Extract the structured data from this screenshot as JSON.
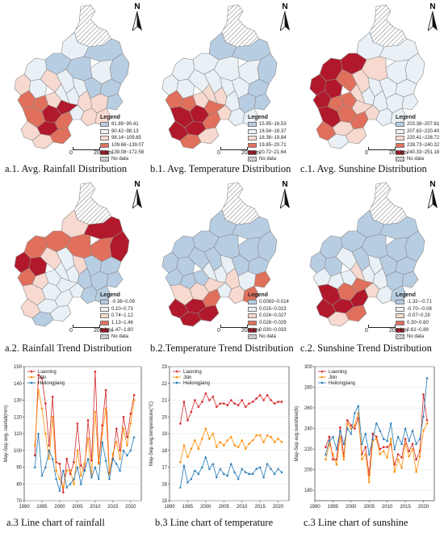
{
  "colors": {
    "c1": "#b7cde2",
    "c2": "#eaf1f6",
    "c3": "#f7d9cf",
    "c4": "#e0705c",
    "c5": "#b2182b",
    "liaoning": "#d62728",
    "jilin": "#ff8c00",
    "heilongjiang": "#1f77b4"
  },
  "compass_letter": "N",
  "no_data_label": "No data",
  "legend_title": "Legend",
  "scale": {
    "zero": "0",
    "km": "200 km"
  },
  "maps": [
    {
      "caption": "a.1. Avg. Rainfall Distribution",
      "legend": [
        "81.89~90.41",
        "90.42~98.13",
        "98.14~109.65",
        "109.66~139.07",
        "139.08~172.58"
      ]
    },
    {
      "caption": "b.1. Avg. Temperature Distribution",
      "legend": [
        "15.95~16.53",
        "16.54~18.37",
        "18.38~19.84",
        "19.85~20.71",
        "20.72~21.64"
      ]
    },
    {
      "caption": "c.1. Avg. Sunshine Distribution",
      "legend": [
        "203.38~207.61",
        "207.62~220.40",
        "220.41~228.72",
        "228.73~240.32",
        "240.33~251.18"
      ]
    },
    {
      "caption": "a.2. Rainfall Trend Distribution",
      "legend": [
        "-0.36~0.09",
        "0.10~0.73",
        "0.74~1.12",
        "1.13~1.46",
        "1.47~1.80"
      ]
    },
    {
      "caption": "b.2.Temperature Trend Distribution",
      "legend": [
        "0.0083~0.014",
        "0.015~0.023",
        "0.024~0.027",
        "0.028~0.029",
        "0.030~0.033"
      ]
    },
    {
      "caption": "c.2. Sunshine Trend Distribution",
      "legend": [
        "-1.32~-0.71",
        "-0.70~-0.08",
        "-0.07~0.29",
        "0.30~0.60",
        "0.61~0.89"
      ]
    }
  ],
  "chart_data": [
    {
      "type": "line",
      "caption": "a.3 Line chart of rainfall",
      "ylabel": "May-Sep avg. rainfall(mm)",
      "xlim": [
        1990,
        2020
      ],
      "ylim": [
        70,
        150
      ],
      "xticks": [
        1990,
        1995,
        2000,
        2005,
        2010,
        2015,
        2020
      ],
      "yticks": [
        70,
        80,
        90,
        100,
        110,
        120,
        130,
        140,
        150
      ],
      "x": [
        1993,
        1994,
        1995,
        1996,
        1997,
        1998,
        1999,
        2000,
        2001,
        2002,
        2003,
        2004,
        2005,
        2006,
        2007,
        2008,
        2009,
        2010,
        2011,
        2012,
        2013,
        2014,
        2015,
        2016,
        2017,
        2018,
        2019,
        2020,
        2021
      ],
      "series": [
        {
          "name": "Liaoning",
          "values": [
            97,
            145,
            143,
            128,
            103,
            132,
            93,
            92,
            75,
            95,
            86,
            93,
            116,
            91,
            88,
            118,
            94,
            147,
            93,
            115,
            136,
            87,
            95,
            113,
            100,
            120,
            108,
            122,
            133
          ]
        },
        {
          "name": "Jilin",
          "values": [
            103,
            136,
            125,
            110,
            95,
            120,
            88,
            83,
            78,
            88,
            88,
            80,
            100,
            85,
            92,
            107,
            85,
            123,
            92,
            110,
            125,
            86,
            98,
            105,
            95,
            113,
            103,
            116,
            130
          ]
        },
        {
          "name": "Heilongjiang",
          "values": [
            90,
            110,
            85,
            90,
            100,
            95,
            83,
            76,
            88,
            78,
            80,
            83,
            90,
            80,
            88,
            95,
            84,
            90,
            83,
            105,
            94,
            83,
            95,
            92,
            88,
            100,
            97,
            100,
            108
          ]
        }
      ]
    },
    {
      "type": "line",
      "caption": "b.3 Line chart of temperature",
      "ylabel": "May-Sep avg.temperature(°C)",
      "xlim": [
        1990,
        2020
      ],
      "ylim": [
        15,
        23
      ],
      "xticks": [
        1990,
        1995,
        2000,
        2005,
        2010,
        2015,
        2020
      ],
      "yticks": [
        15,
        16,
        17,
        18,
        19,
        20,
        21,
        22,
        23
      ],
      "x": [
        1993,
        1994,
        1995,
        1996,
        1997,
        1998,
        1999,
        2000,
        2001,
        2002,
        2003,
        2004,
        2005,
        2006,
        2007,
        2008,
        2009,
        2010,
        2011,
        2012,
        2013,
        2014,
        2015,
        2016,
        2017,
        2018,
        2019,
        2020,
        2021
      ],
      "series": [
        {
          "name": "Liaoning",
          "values": [
            19.6,
            20.9,
            19.8,
            20.3,
            21.0,
            20.6,
            20.9,
            21.4,
            21.0,
            21.2,
            20.6,
            20.8,
            20.8,
            20.7,
            21.0,
            20.8,
            20.7,
            21.0,
            20.6,
            20.8,
            20.9,
            21.1,
            21.3,
            21.0,
            21.3,
            21.0,
            20.8,
            20.9,
            20.9
          ]
        },
        {
          "name": "Jilin",
          "values": [
            17.3,
            18.3,
            17.6,
            18.1,
            18.6,
            18.1,
            18.7,
            19.3,
            18.7,
            19.0,
            18.2,
            18.5,
            18.3,
            18.6,
            18.8,
            18.3,
            18.2,
            18.6,
            18.1,
            18.4,
            18.6,
            18.9,
            18.9,
            18.5,
            18.9,
            18.8,
            18.5,
            18.7,
            18.5
          ]
        },
        {
          "name": "Heilongjiang",
          "values": [
            15.8,
            17.1,
            16.1,
            16.3,
            16.8,
            16.6,
            17.0,
            17.6,
            16.9,
            17.2,
            16.4,
            16.9,
            16.6,
            16.5,
            17.2,
            16.7,
            16.3,
            16.9,
            16.7,
            16.6,
            16.6,
            16.9,
            17.0,
            16.4,
            17.2,
            16.9,
            16.6,
            16.9,
            16.7
          ]
        }
      ]
    },
    {
      "type": "line",
      "caption": "c.3 Line chart of sunshine",
      "ylabel": "May-Sep avg.sunshine(h)",
      "xlim": [
        1990,
        2020
      ],
      "ylim": [
        170,
        300
      ],
      "xticks": [
        1990,
        1995,
        2000,
        2005,
        2010,
        2015,
        2020
      ],
      "yticks": [
        180,
        200,
        220,
        240,
        260,
        280,
        300
      ],
      "x": [
        1993,
        1994,
        1995,
        1996,
        1997,
        1998,
        1999,
        2000,
        2001,
        2002,
        2003,
        2004,
        2005,
        2006,
        2007,
        2008,
        2009,
        2010,
        2011,
        2012,
        2013,
        2014,
        2015,
        2016,
        2017,
        2018,
        2019,
        2020,
        2021
      ],
      "series": [
        {
          "name": "Liaoning",
          "values": [
            222,
            232,
            210,
            210,
            241,
            213,
            248,
            243,
            240,
            250,
            215,
            222,
            195,
            235,
            232,
            220,
            222,
            222,
            225,
            205,
            215,
            212,
            230,
            218,
            225,
            210,
            218,
            273,
            248
          ]
        },
        {
          "name": "Jilin",
          "values": [
            210,
            225,
            215,
            205,
            232,
            210,
            245,
            240,
            243,
            255,
            210,
            215,
            188,
            228,
            230,
            215,
            218,
            212,
            230,
            198,
            210,
            202,
            225,
            213,
            220,
            198,
            213,
            238,
            245
          ]
        },
        {
          "name": "Heilongjiang",
          "values": [
            215,
            228,
            232,
            220,
            238,
            225,
            240,
            235,
            255,
            262,
            225,
            235,
            215,
            230,
            245,
            238,
            230,
            228,
            245,
            220,
            232,
            225,
            240,
            228,
            238,
            225,
            230,
            252,
            289
          ]
        }
      ]
    }
  ]
}
